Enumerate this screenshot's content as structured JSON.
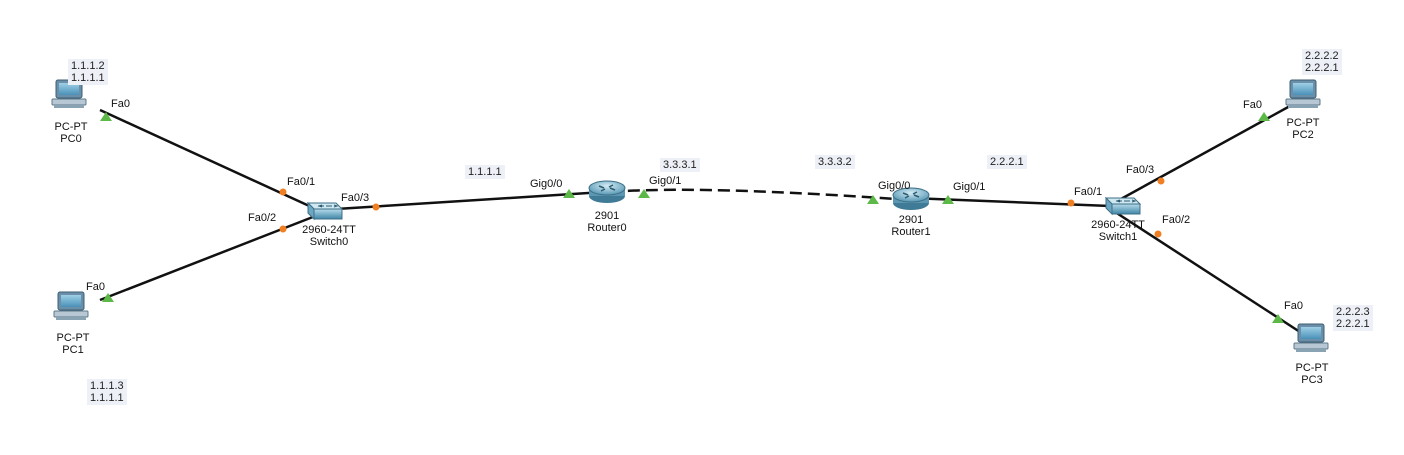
{
  "colors": {
    "link": "#111111",
    "port_up": "#5cb847",
    "port_switch": "#f07f22",
    "note_bg": "#eef0f8"
  },
  "devices": {
    "pc0": {
      "model": "PC-PT",
      "name": "PC0",
      "icon": "pc-icon"
    },
    "pc1": {
      "model": "PC-PT",
      "name": "PC1",
      "icon": "pc-icon"
    },
    "pc2": {
      "model": "PC-PT",
      "name": "PC2",
      "icon": "pc-icon"
    },
    "pc3": {
      "model": "PC-PT",
      "name": "PC3",
      "icon": "pc-icon"
    },
    "switch0": {
      "model": "2960-24TT",
      "name": "Switch0",
      "icon": "switch-icon"
    },
    "switch1": {
      "model": "2960-24TT",
      "name": "Switch1",
      "icon": "switch-icon"
    },
    "router0": {
      "model": "2901",
      "name": "Router0",
      "icon": "router-icon"
    },
    "router1": {
      "model": "2901",
      "name": "Router1",
      "icon": "router-icon"
    }
  },
  "ports": {
    "pc0_fa0": "Fa0",
    "pc1_fa0": "Fa0",
    "pc2_fa0": "Fa0",
    "pc3_fa0": "Fa0",
    "sw0_fa01": "Fa0/1",
    "sw0_fa02": "Fa0/2",
    "sw0_fa03": "Fa0/3",
    "sw1_fa01": "Fa0/1",
    "sw1_fa02": "Fa0/2",
    "sw1_fa03": "Fa0/3",
    "r0_gig00": "Gig0/0",
    "r0_gig01": "Gig0/1",
    "r1_gig00": "Gig0/0",
    "r1_gig01": "Gig0/1"
  },
  "notes": {
    "pc0": [
      "1.1.1.2",
      "1.1.1.1"
    ],
    "pc1": [
      "1.1.1.3",
      "1.1.1.1"
    ],
    "pc2": [
      "2.2.2.2",
      "2.2.2.1"
    ],
    "pc3": [
      "2.2.2.3",
      "2.2.2.1"
    ],
    "r0_gig00": "1.1.1.1",
    "r0_gig01": "3.3.3.1",
    "r1_gig00": "3.3.3.2",
    "r1_gig01": "2.2.2.1"
  }
}
